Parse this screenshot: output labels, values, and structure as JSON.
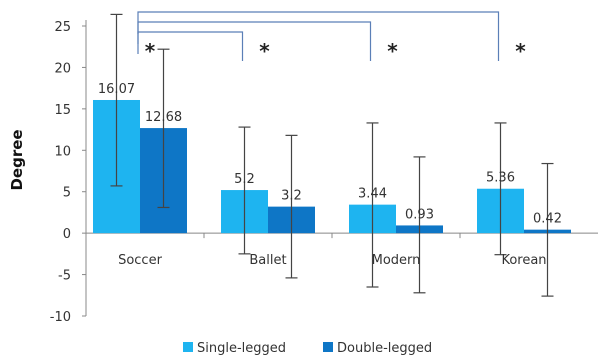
{
  "chart_data": {
    "type": "bar",
    "ylabel": "Degree",
    "ylim": [
      -10,
      25
    ],
    "yticks": [
      -10,
      -5,
      0,
      5,
      10,
      15,
      20,
      25
    ],
    "categories": [
      "Soccer",
      "Ballet",
      "Modern",
      "Korean"
    ],
    "series": [
      {
        "name": "Single-legged",
        "color": "#1EB4F0",
        "values": [
          16.07,
          5.2,
          3.44,
          5.36
        ],
        "labels": [
          "16.07",
          "5.2",
          "3.44",
          "5.36"
        ],
        "error_low": [
          5.7,
          -2.5,
          -6.5,
          -2.6
        ],
        "error_high": [
          26.4,
          12.8,
          13.3,
          13.3
        ]
      },
      {
        "name": "Double-legged",
        "color": "#0E76C6",
        "values": [
          12.68,
          3.2,
          0.93,
          0.42
        ],
        "labels": [
          "12.68",
          "3.2",
          "0.93",
          "0.42"
        ],
        "error_low": [
          3.1,
          -5.4,
          -7.2,
          -7.6
        ],
        "error_high": [
          22.2,
          11.8,
          9.2,
          8.4
        ]
      }
    ],
    "significance": [
      {
        "from": "Soccer",
        "to": "Ballet",
        "marker": "*"
      },
      {
        "from": "Soccer",
        "to": "Modern",
        "marker": "*"
      },
      {
        "from": "Soccer",
        "to": "Korean",
        "marker": "*"
      }
    ],
    "soccer_star": "*",
    "legend_position": "bottom",
    "grid": false
  }
}
